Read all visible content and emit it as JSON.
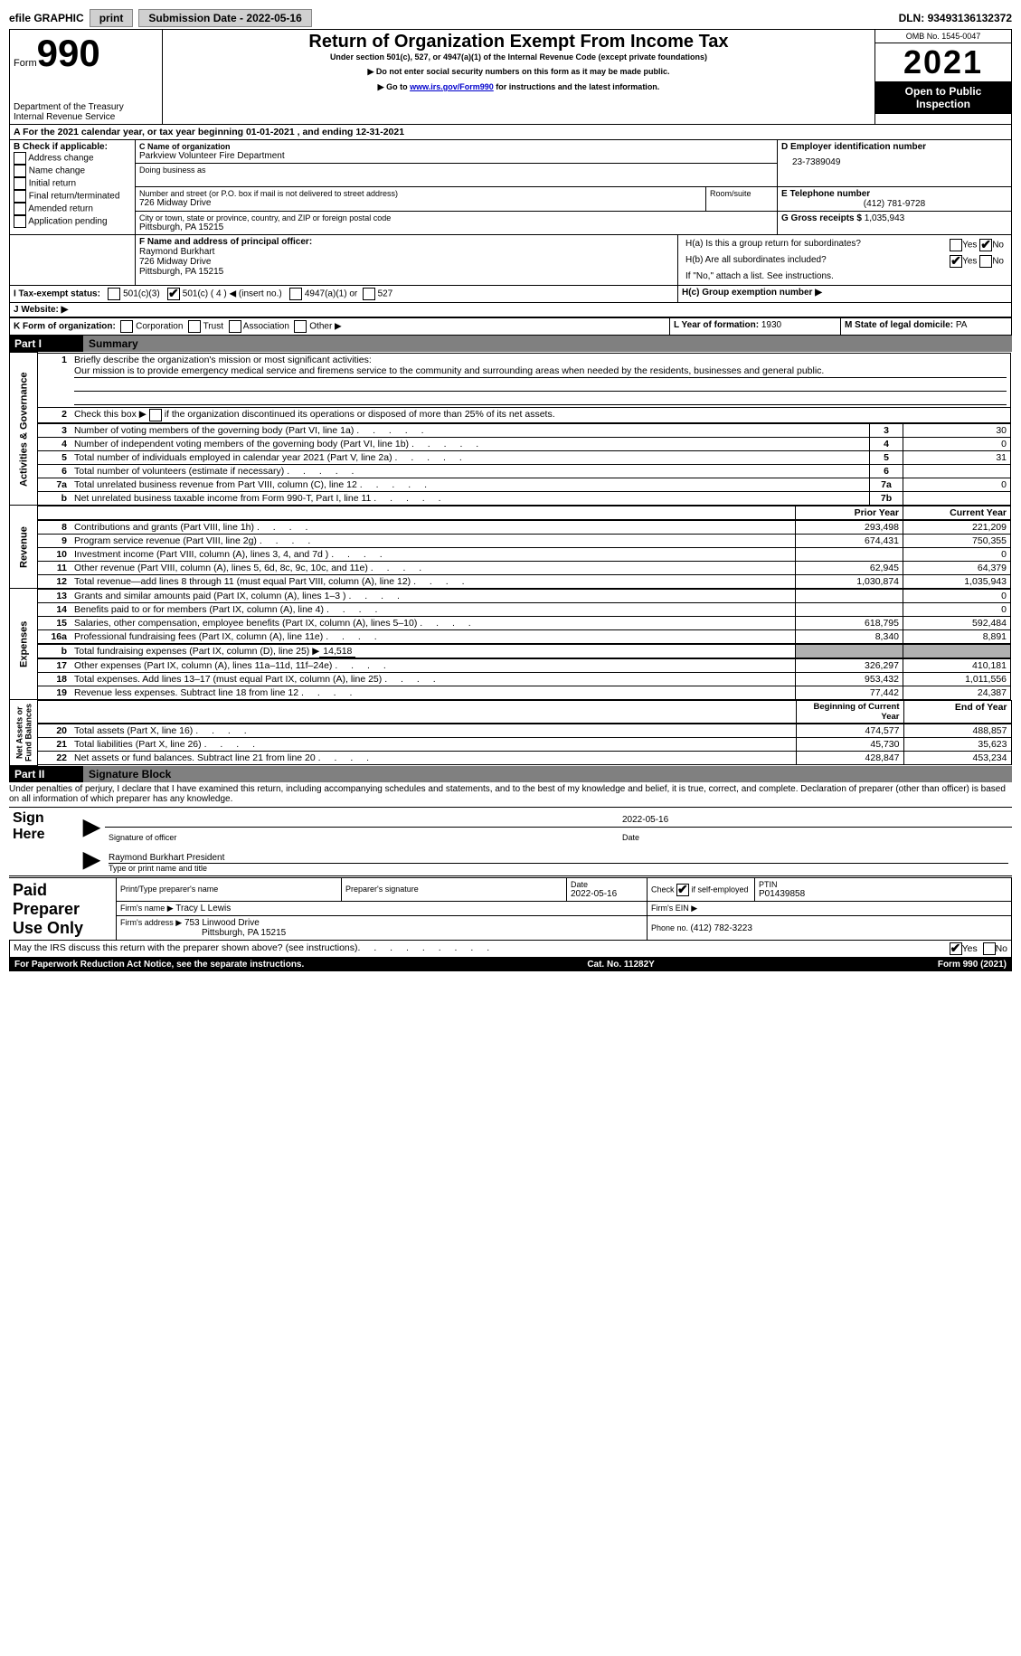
{
  "topBar": {
    "efile": "efile GRAPHIC",
    "print": "print",
    "submissionLabel": "Submission Date - ",
    "submissionDate": "2022-05-16",
    "dlnLabel": "DLN: ",
    "dln": "93493136132372"
  },
  "header": {
    "formWord": "Form",
    "formNum": "990",
    "dept": "Department of the Treasury\nInternal Revenue Service",
    "title": "Return of Organization Exempt From Income Tax",
    "subtitle": "Under section 501(c), 527, or 4947(a)(1) of the Internal Revenue Code (except private foundations)",
    "note1": "▶ Do not enter social security numbers on this form as it may be made public.",
    "note2_pre": "▶ Go to ",
    "note2_link": "www.irs.gov/Form990",
    "note2_post": " for instructions and the latest information.",
    "omb": "OMB No. 1545-0047",
    "year": "2021",
    "openPublic": "Open to Public Inspection"
  },
  "periodLine": {
    "pre": "A For the 2021 calendar year, or tax year beginning ",
    "begin": "01-01-2021",
    "mid": " , and ending ",
    "end": "12-31-2021"
  },
  "boxB": {
    "label": "B Check if applicable:",
    "items": [
      "Address change",
      "Name change",
      "Initial return",
      "Final return/terminated",
      "Amended return",
      "Application pending"
    ]
  },
  "boxC": {
    "nameLabel": "C Name of organization",
    "name": "Parkview Volunteer Fire Department",
    "dbaLabel": "Doing business as",
    "streetLabel": "Number and street (or P.O. box if mail is not delivered to street address)",
    "roomLabel": "Room/suite",
    "street": "726 Midway Drive",
    "cityLabel": "City or town, state or province, country, and ZIP or foreign postal code",
    "city": "Pittsburgh, PA   15215"
  },
  "boxD": {
    "label": "D Employer identification number",
    "value": "23-7389049"
  },
  "boxE": {
    "label": "E Telephone number",
    "value": "(412) 781-9728"
  },
  "boxG": {
    "label": "G Gross receipts $ ",
    "value": "1,035,943"
  },
  "boxF": {
    "label": "F Name and address of principal officer:",
    "name": "Raymond Burkhart",
    "street": "726 Midway Drive",
    "city": "Pittsburgh, PA   15215"
  },
  "boxH": {
    "ha": "H(a)  Is this a group return for subordinates?",
    "hb": "H(b)  Are all subordinates included?",
    "hbNote": "If \"No,\" attach a list. See instructions.",
    "hc": "H(c)  Group exemption number ▶",
    "yes": "Yes",
    "no": "No"
  },
  "boxI": {
    "label": "I   Tax-exempt status:",
    "c3": "501(c)(3)",
    "c": "501(c) ( 4 ) ◀ (insert no.)",
    "a1": "4947(a)(1) or",
    "s527": "527"
  },
  "boxJ": {
    "label": "J   Website: ▶"
  },
  "boxK": {
    "label": "K Form of organization:",
    "corp": "Corporation",
    "trust": "Trust",
    "assoc": "Association",
    "other": "Other ▶"
  },
  "boxL": {
    "label": "L Year of formation: ",
    "value": "1930"
  },
  "boxM": {
    "label": "M State of legal domicile: ",
    "value": "PA"
  },
  "part1": {
    "label": "Part I",
    "title": "Summary"
  },
  "summary": {
    "q1": "Briefly describe the organization's mission or most significant activities:",
    "q1text": "Our mission is to provide emergency medical service and firemens service to the community and surrounding areas when needed by the residents, businesses and general public.",
    "q2": "Check this box ▶      if the organization discontinued its operations or disposed of more than 25% of its net assets.",
    "rows": [
      {
        "n": "3",
        "t": "Number of voting members of the governing body (Part VI, line 1a)",
        "b": "3",
        "v": "30"
      },
      {
        "n": "4",
        "t": "Number of independent voting members of the governing body (Part VI, line 1b)",
        "b": "4",
        "v": "0"
      },
      {
        "n": "5",
        "t": "Total number of individuals employed in calendar year 2021 (Part V, line 2a)",
        "b": "5",
        "v": "31"
      },
      {
        "n": "6",
        "t": "Total number of volunteers (estimate if necessary)",
        "b": "6",
        "v": ""
      },
      {
        "n": "7a",
        "t": "Total unrelated business revenue from Part VIII, column (C), line 12",
        "b": "7a",
        "v": "0"
      },
      {
        "n": "b",
        "t": "Net unrelated business taxable income from Form 990-T, Part I, line 11",
        "b": "7b",
        "v": ""
      }
    ],
    "priorYear": "Prior Year",
    "currentYear": "Current Year",
    "revenue": [
      {
        "n": "8",
        "t": "Contributions and grants (Part VIII, line 1h)",
        "p": "293,498",
        "c": "221,209"
      },
      {
        "n": "9",
        "t": "Program service revenue (Part VIII, line 2g)",
        "p": "674,431",
        "c": "750,355"
      },
      {
        "n": "10",
        "t": "Investment income (Part VIII, column (A), lines 3, 4, and 7d )",
        "p": "",
        "c": "0"
      },
      {
        "n": "11",
        "t": "Other revenue (Part VIII, column (A), lines 5, 6d, 8c, 9c, 10c, and 11e)",
        "p": "62,945",
        "c": "64,379"
      },
      {
        "n": "12",
        "t": "Total revenue—add lines 8 through 11 (must equal Part VIII, column (A), line 12)",
        "p": "1,030,874",
        "c": "1,035,943"
      }
    ],
    "expenses": [
      {
        "n": "13",
        "t": "Grants and similar amounts paid (Part IX, column (A), lines 1–3 )",
        "p": "",
        "c": "0"
      },
      {
        "n": "14",
        "t": "Benefits paid to or for members (Part IX, column (A), line 4)",
        "p": "",
        "c": "0"
      },
      {
        "n": "15",
        "t": "Salaries, other compensation, employee benefits (Part IX, column (A), lines 5–10)",
        "p": "618,795",
        "c": "592,484"
      },
      {
        "n": "16a",
        "t": "Professional fundraising fees (Part IX, column (A), line 11e)",
        "p": "8,340",
        "c": "8,891"
      }
    ],
    "line_b": {
      "n": "b",
      "t": "Total fundraising expenses (Part IX, column (D), line 25) ▶",
      "v": "14,518"
    },
    "expenses2": [
      {
        "n": "17",
        "t": "Other expenses (Part IX, column (A), lines 11a–11d, 11f–24e)",
        "p": "326,297",
        "c": "410,181"
      },
      {
        "n": "18",
        "t": "Total expenses. Add lines 13–17 (must equal Part IX, column (A), line 25)",
        "p": "953,432",
        "c": "1,011,556"
      },
      {
        "n": "19",
        "t": "Revenue less expenses. Subtract line 18 from line 12",
        "p": "77,442",
        "c": "24,387"
      }
    ],
    "begYear": "Beginning of Current Year",
    "endYear": "End of Year",
    "netassets": [
      {
        "n": "20",
        "t": "Total assets (Part X, line 16)",
        "p": "474,577",
        "c": "488,857"
      },
      {
        "n": "21",
        "t": "Total liabilities (Part X, line 26)",
        "p": "45,730",
        "c": "35,623"
      },
      {
        "n": "22",
        "t": "Net assets or fund balances. Subtract line 21 from line 20",
        "p": "428,847",
        "c": "453,234"
      }
    ]
  },
  "vertLabels": {
    "gov": "Activities & Governance",
    "rev": "Revenue",
    "exp": "Expenses",
    "net": "Net Assets or\nFund Balances"
  },
  "part2": {
    "label": "Part II",
    "title": "Signature Block"
  },
  "sigDecl": "Under penalties of perjury, I declare that I have examined this return, including accompanying schedules and statements, and to the best of my knowledge and belief, it is true, correct, and complete. Declaration of preparer (other than officer) is based on all information of which preparer has any knowledge.",
  "sign": {
    "here": "Sign Here",
    "sigOfficer": "Signature of officer",
    "date": "Date",
    "dateVal": "2022-05-16",
    "name": "Raymond Burkhart  President",
    "nameLabel": "Type or print name and title"
  },
  "prep": {
    "label": "Paid Preparer Use Only",
    "printName": "Print/Type preparer's name",
    "sig": "Preparer's signature",
    "dateLabel": "Date",
    "dateVal": "2022-05-16",
    "checkLabel": "Check         if self-employed",
    "ptinLabel": "PTIN",
    "ptin": "P01439858",
    "firmNameLabel": "Firm's name     ▶",
    "firmName": "Tracy L Lewis",
    "firmEinLabel": "Firm's EIN ▶",
    "firmAddrLabel": "Firm's address ▶",
    "firmAddr": "753 Linwood Drive",
    "firmCity": "Pittsburgh, PA   15215",
    "phoneLabel": "Phone no. ",
    "phone": "(412) 782-3223"
  },
  "discuss": {
    "text": "May the IRS discuss this return with the preparer shown above? (see instructions)",
    "yes": "Yes",
    "no": "No"
  },
  "footer": {
    "left": "For Paperwork Reduction Act Notice, see the separate instructions.",
    "mid": "Cat. No. 11282Y",
    "right": "Form 990 (2021)"
  }
}
